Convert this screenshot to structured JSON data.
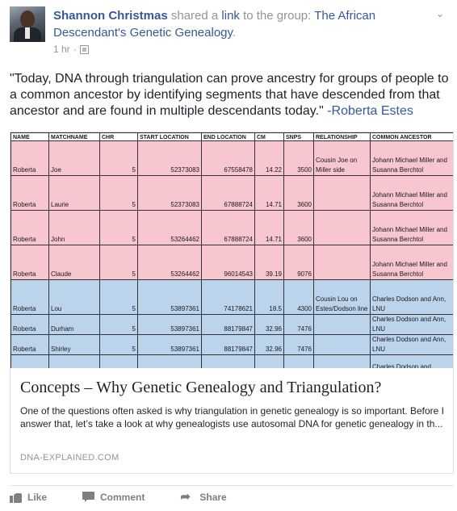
{
  "post": {
    "author": "Shannon Christmas",
    "action_text": " shared a ",
    "link_word": "link",
    "to_text": " to the group: ",
    "group": "The African Descendant's Genetic Genealogy",
    "period": ".",
    "time": "1 hr",
    "separator": " · ",
    "audience_icon": "group-audience-icon",
    "message": "\"Today, DNA through triangulation can prove ancestry for groups of people to a common ancestor by identifying segments that have descended from that ancestor and are found in multiple descendants today.\" ",
    "message_author": "-Roberta Estes"
  },
  "attachment": {
    "title": "Concepts – Why Genetic Genealogy and Triangulation?",
    "description": "One of the questions often asked is why triangulation in genetic genealogy is so important. Before I answer that, let’s take a look at why genealogists use autosomal DNA for genetic genealogy in th...",
    "domain": "DNA-EXPLAINED.COM",
    "table": {
      "headers": [
        "NAME",
        "MATCHNAME",
        "CHR",
        "START LOCATION",
        "END LOCATION",
        "CM",
        "SNPS",
        "Relationship",
        "Common Ancestor"
      ],
      "rows": [
        {
          "name": "Roberta",
          "match": "Joe",
          "chr": "5",
          "start": "52373083",
          "end": "67558478",
          "cm": "14.22",
          "snps": "3500",
          "rel": "Cousin Joe on Miller side",
          "ancestor": "Johann Michael Miller and Susanna Berchtol"
        },
        {
          "name": "Roberta",
          "match": "Laurie",
          "chr": "5",
          "start": "52373083",
          "end": "67888724",
          "cm": "14.71",
          "snps": "3600",
          "rel": "",
          "ancestor": "Johann Michael Miller and Susanna Berchtol"
        },
        {
          "name": "Roberta",
          "match": "John",
          "chr": "5",
          "start": "53264462",
          "end": "67888724",
          "cm": "14.71",
          "snps": "3600",
          "rel": "",
          "ancestor": "Johann Michael Miller and Susanna Berchtol"
        },
        {
          "name": "Roberta",
          "match": "Claude",
          "chr": "5",
          "start": "53264462",
          "end": "96014543",
          "cm": "39.19",
          "snps": "9076",
          "rel": "",
          "ancestor": "Johann Michael Miller and Susanna Berchtol"
        },
        {
          "name": "Roberta",
          "match": "Lou",
          "chr": "5",
          "start": "53897361",
          "end": "74178621",
          "cm": "18.5",
          "snps": "4300",
          "rel": "Cousin Lou on Estes/Dodson line",
          "ancestor": "Charles Dodson and Ann, LNU"
        },
        {
          "name": "Roberta",
          "match": "Durham",
          "chr": "5",
          "start": "53897361",
          "end": "88179847",
          "cm": "32.96",
          "snps": "7476",
          "rel": "",
          "ancestor": "Charles Dodson and Ann, LNU"
        },
        {
          "name": "Roberta",
          "match": "Shirley",
          "chr": "5",
          "start": "53897361",
          "end": "88179847",
          "cm": "32.96",
          "snps": "7476",
          "rel": "",
          "ancestor": "Charles Dodson and Ann, LNU"
        },
        {
          "name": "",
          "match": "",
          "chr": "",
          "start": "",
          "end": "",
          "cm": "",
          "snps": "",
          "rel": "",
          "ancestor": "Charles Dodson and"
        }
      ]
    }
  },
  "actions": {
    "like": "Like",
    "comment": "Comment",
    "share": "Share",
    "share_glyph": "➦"
  },
  "icons": {
    "menu": "chevron-down-icon",
    "like": "thumbs-up-icon",
    "comment": "comment-bubble-icon",
    "share": "share-arrow-icon"
  },
  "colors": {
    "link": "#365899",
    "muted": "#90949c",
    "pink_row": "#f7c6ce",
    "blue_row": "#bcd3ec"
  }
}
